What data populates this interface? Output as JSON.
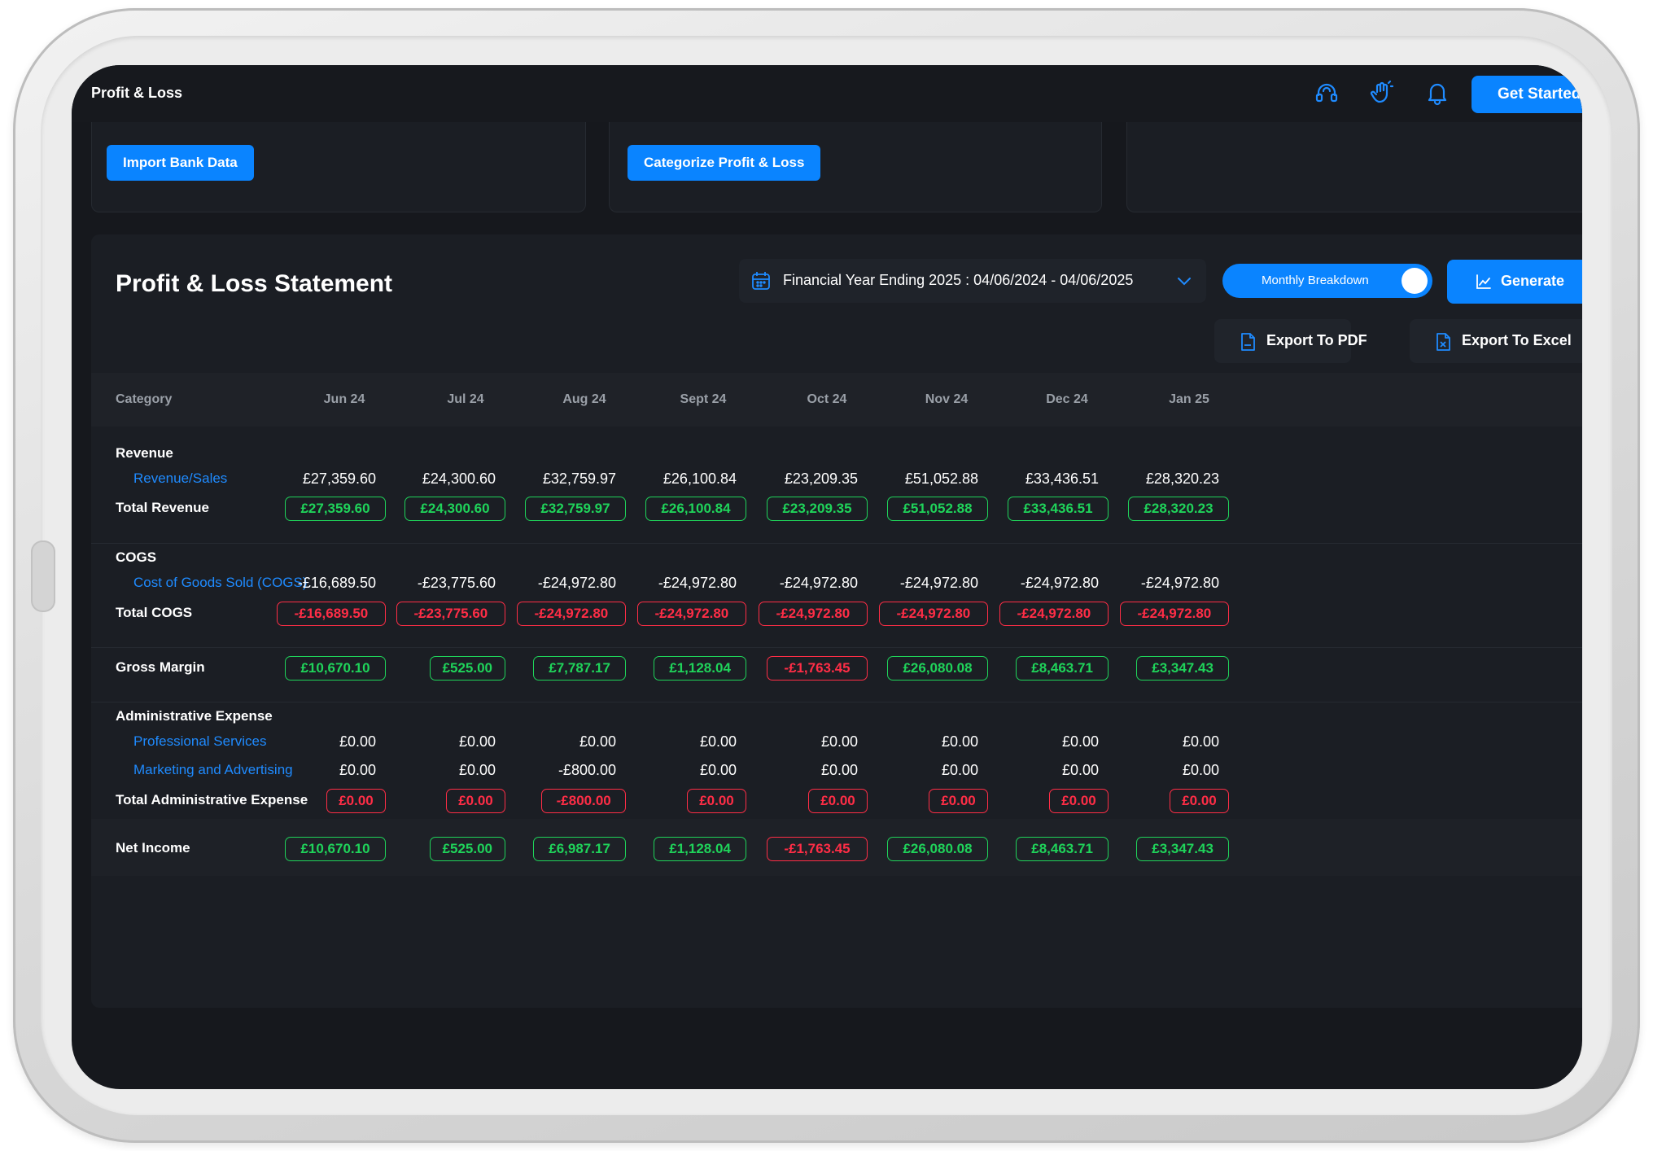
{
  "app": {
    "title": "Profit & Loss",
    "get_started": "Get Started"
  },
  "cards": {
    "import_label": "Import Bank Data",
    "categorize_label": "Categorize Profit & Loss"
  },
  "statement": {
    "title": "Profit & Loss Statement",
    "financial_year": "Financial Year Ending 2025 : 04/06/2024 - 04/06/2025",
    "toggle_label": "Monthly Breakdown",
    "generate_label": "Generate",
    "export_pdf": "Export To PDF",
    "export_excel": "Export To Excel"
  },
  "table": {
    "category_header": "Category",
    "months": [
      "Jun 24",
      "Jul 24",
      "Aug 24",
      "Sept 24",
      "Oct 24",
      "Nov 24",
      "Dec 24",
      "Jan 25"
    ],
    "sections": {
      "revenue": "Revenue",
      "cogs": "COGS",
      "admin": "Administrative Expense"
    },
    "rows": {
      "revenue_sales": {
        "label": "Revenue/Sales",
        "values": [
          "£27,359.60",
          "£24,300.60",
          "£32,759.97",
          "£26,100.84",
          "£23,209.35",
          "£51,052.88",
          "£33,436.51",
          "£28,320.23"
        ]
      },
      "total_revenue": {
        "label": "Total Revenue",
        "values": [
          "£27,359.60",
          "£24,300.60",
          "£32,759.97",
          "£26,100.84",
          "£23,209.35",
          "£51,052.88",
          "£33,436.51",
          "£28,320.23"
        ],
        "signs": [
          "pos",
          "pos",
          "pos",
          "pos",
          "pos",
          "pos",
          "pos",
          "pos"
        ]
      },
      "cogs_line": {
        "label": "Cost of Goods Sold (COGS)",
        "values": [
          "-£16,689.50",
          "-£23,775.60",
          "-£24,972.80",
          "-£24,972.80",
          "-£24,972.80",
          "-£24,972.80",
          "-£24,972.80",
          "-£24,972.80"
        ]
      },
      "total_cogs": {
        "label": "Total COGS",
        "values": [
          "-£16,689.50",
          "-£23,775.60",
          "-£24,972.80",
          "-£24,972.80",
          "-£24,972.80",
          "-£24,972.80",
          "-£24,972.80",
          "-£24,972.80"
        ],
        "signs": [
          "neg",
          "neg",
          "neg",
          "neg",
          "neg",
          "neg",
          "neg",
          "neg"
        ]
      },
      "gross_margin": {
        "label": "Gross Margin",
        "values": [
          "£10,670.10",
          "£525.00",
          "£7,787.17",
          "£1,128.04",
          "-£1,763.45",
          "£26,080.08",
          "£8,463.71",
          "£3,347.43"
        ],
        "signs": [
          "pos",
          "pos",
          "pos",
          "pos",
          "neg",
          "pos",
          "pos",
          "pos"
        ]
      },
      "professional_services": {
        "label": "Professional Services",
        "values": [
          "£0.00",
          "£0.00",
          "£0.00",
          "£0.00",
          "£0.00",
          "£0.00",
          "£0.00",
          "£0.00"
        ]
      },
      "marketing": {
        "label": "Marketing and Advertising",
        "values": [
          "£0.00",
          "£0.00",
          "-£800.00",
          "£0.00",
          "£0.00",
          "£0.00",
          "£0.00",
          "£0.00"
        ]
      },
      "total_admin": {
        "label": "Total Administrative Expense",
        "values": [
          "£0.00",
          "£0.00",
          "-£800.00",
          "£0.00",
          "£0.00",
          "£0.00",
          "£0.00",
          "£0.00"
        ],
        "signs": [
          "neg",
          "neg",
          "neg",
          "neg",
          "neg",
          "neg",
          "neg",
          "neg"
        ]
      },
      "net_income": {
        "label": "Net Income",
        "values": [
          "£10,670.10",
          "£525.00",
          "£6,987.17",
          "£1,128.04",
          "-£1,763.45",
          "£26,080.08",
          "£8,463.71",
          "£3,347.43"
        ],
        "signs": [
          "pos",
          "pos",
          "pos",
          "pos",
          "neg",
          "pos",
          "pos",
          "pos"
        ]
      }
    }
  },
  "icons": {
    "support": "headset-icon",
    "wave": "hand-wave-icon",
    "notifications": "bell-icon",
    "calendar": "calendar-icon",
    "chevron": "chevron-down-icon",
    "chart": "chart-icon",
    "pdf": "pdf-file-icon",
    "excel": "excel-file-icon"
  },
  "colors": {
    "accent": "#0a84ff",
    "positive": "#1fd35a",
    "negative": "#ff2d46",
    "background": "#16181d"
  }
}
